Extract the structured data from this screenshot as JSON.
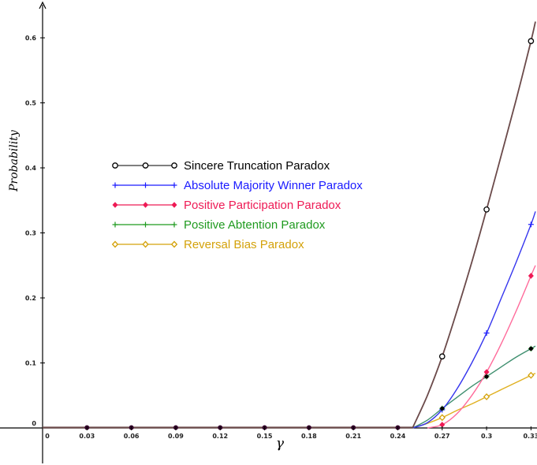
{
  "chart_data": {
    "type": "line",
    "xlabel": "γ",
    "ylabel": "Probability",
    "xlim": [
      0,
      0.333
    ],
    "ylim": [
      -0.003,
      0.64
    ],
    "x_ticks": [
      "0",
      "0.03",
      "0.06",
      "0.09",
      "0.12",
      "0.15",
      "0.18",
      "0.21",
      "0.24",
      "0.27",
      "0.3",
      "0.33"
    ],
    "x_tick_values": [
      0,
      0.03,
      0.06,
      0.09,
      0.12,
      0.15,
      0.18,
      0.21,
      0.24,
      0.27,
      0.3,
      0.33
    ],
    "y_ticks": [
      "0",
      "0.1",
      "0.2",
      "0.3",
      "0.4",
      "0.5",
      "0.6"
    ],
    "y_tick_values": [
      0,
      0.1,
      0.2,
      0.3,
      0.4,
      0.5,
      0.6
    ],
    "grid": false,
    "legend_position": "upper-left",
    "series": [
      {
        "name": "Sincere Truncation Paradox",
        "color": "#000000",
        "curve_color": "#6b4a4a",
        "marker": "open-circle",
        "x": [
          0.27,
          0.3,
          0.33
        ],
        "y": [
          0.11,
          0.336,
          0.595
        ],
        "curve": [
          [
            0.25,
            0
          ],
          [
            0.26,
            0.05
          ],
          [
            0.27,
            0.11
          ],
          [
            0.28,
            0.18
          ],
          [
            0.29,
            0.255
          ],
          [
            0.3,
            0.336
          ],
          [
            0.31,
            0.42
          ],
          [
            0.32,
            0.505
          ],
          [
            0.33,
            0.595
          ],
          [
            0.333,
            0.625
          ]
        ]
      },
      {
        "name": "Absolute Majority Winner Paradox",
        "color": "#1a1aff",
        "curve_color": "#3535ee",
        "marker": "plus",
        "x": [
          0.27,
          0.3,
          0.33
        ],
        "y": [
          0.028,
          0.146,
          0.313
        ],
        "curve": [
          [
            0.25,
            0
          ],
          [
            0.26,
            0.008
          ],
          [
            0.27,
            0.028
          ],
          [
            0.28,
            0.06
          ],
          [
            0.29,
            0.1
          ],
          [
            0.3,
            0.146
          ],
          [
            0.31,
            0.2
          ],
          [
            0.32,
            0.255
          ],
          [
            0.33,
            0.313
          ],
          [
            0.333,
            0.333
          ]
        ]
      },
      {
        "name": "Positive Participation Paradox",
        "color": "#ee1a55",
        "curve_color": "#ff6a9a",
        "marker": "filled-diamond",
        "x": [
          0.27,
          0.3,
          0.33
        ],
        "y": [
          0.005,
          0.086,
          0.234
        ],
        "curve": [
          [
            0.26,
            0
          ],
          [
            0.27,
            0.005
          ],
          [
            0.28,
            0.022
          ],
          [
            0.29,
            0.05
          ],
          [
            0.3,
            0.086
          ],
          [
            0.31,
            0.13
          ],
          [
            0.32,
            0.18
          ],
          [
            0.33,
            0.234
          ],
          [
            0.333,
            0.25
          ]
        ]
      },
      {
        "name": "Positive Abtention Paradox",
        "color": "#1f9a1f",
        "curve_color": "#3f8f6f",
        "marker": "plus",
        "x": [
          0.27,
          0.3,
          0.33
        ],
        "y": [
          0.03,
          0.079,
          0.122
        ],
        "curve": [
          [
            0.25,
            0
          ],
          [
            0.26,
            0.012
          ],
          [
            0.27,
            0.03
          ],
          [
            0.28,
            0.047
          ],
          [
            0.29,
            0.064
          ],
          [
            0.3,
            0.079
          ],
          [
            0.31,
            0.094
          ],
          [
            0.32,
            0.109
          ],
          [
            0.33,
            0.122
          ],
          [
            0.333,
            0.126
          ]
        ]
      },
      {
        "name": "Reversal Bias Paradox",
        "color": "#d4a20a",
        "curve_color": "#e0b020",
        "marker": "open-diamond",
        "x": [
          0.27,
          0.3,
          0.33
        ],
        "y": [
          0.016,
          0.048,
          0.081
        ],
        "curve": [
          [
            0.25,
            0
          ],
          [
            0.26,
            0.007
          ],
          [
            0.27,
            0.016
          ],
          [
            0.28,
            0.027
          ],
          [
            0.29,
            0.037
          ],
          [
            0.3,
            0.048
          ],
          [
            0.31,
            0.059
          ],
          [
            0.32,
            0.07
          ],
          [
            0.33,
            0.081
          ],
          [
            0.333,
            0.084
          ]
        ]
      }
    ],
    "baseline_points": {
      "x": [
        0.03,
        0.06,
        0.09,
        0.12,
        0.15,
        0.18,
        0.21,
        0.24
      ],
      "y": [
        0,
        0,
        0,
        0,
        0,
        0,
        0,
        0
      ]
    },
    "extra_points": {
      "x": [
        0.27,
        0.3,
        0.33
      ],
      "y": [
        0.03,
        0.079,
        0.122
      ]
    }
  }
}
